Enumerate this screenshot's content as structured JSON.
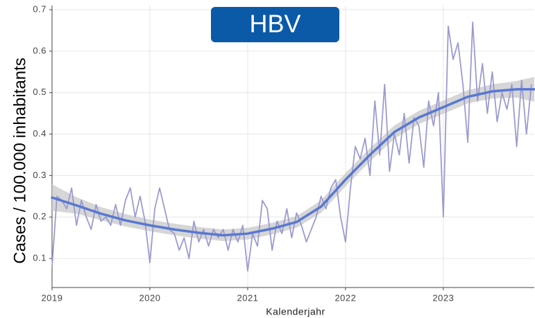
{
  "chart_data": {
    "type": "line",
    "title": "HBV",
    "ylabel": "Cases / 100.000 inhabitants",
    "xlabel": "Kalenderjahr",
    "xlim": [
      2019,
      2023.93
    ],
    "ylim": [
      0.03,
      0.71
    ],
    "xticks": [
      2019,
      2020,
      2021,
      2022,
      2023
    ],
    "yticks": [
      0.1,
      0.2,
      0.3,
      0.4,
      0.5,
      0.6,
      0.7
    ],
    "grid": true,
    "title_box_color": "#0b5aa8",
    "x": [
      2019,
      2019.05,
      2019.1,
      2019.15,
      2019.2,
      2019.25,
      2019.3,
      2019.35,
      2019.4,
      2019.45,
      2019.5,
      2019.55,
      2019.6,
      2019.65,
      2019.7,
      2019.75,
      2019.8,
      2019.85,
      2019.9,
      2019.95,
      2020,
      2020.05,
      2020.1,
      2020.15,
      2020.2,
      2020.25,
      2020.3,
      2020.35,
      2020.4,
      2020.45,
      2020.5,
      2020.55,
      2020.6,
      2020.65,
      2020.7,
      2020.75,
      2020.8,
      2020.85,
      2020.9,
      2020.95,
      2021,
      2021.05,
      2021.1,
      2021.15,
      2021.2,
      2021.25,
      2021.3,
      2021.35,
      2021.4,
      2021.45,
      2021.5,
      2021.55,
      2021.6,
      2021.65,
      2021.7,
      2021.75,
      2021.8,
      2021.85,
      2021.9,
      2021.95,
      2022,
      2022.05,
      2022.1,
      2022.15,
      2022.2,
      2022.25,
      2022.3,
      2022.35,
      2022.4,
      2022.45,
      2022.5,
      2022.55,
      2022.6,
      2022.65,
      2022.7,
      2022.75,
      2022.8,
      2022.85,
      2022.9,
      2022.95,
      2023,
      2023.05,
      2023.1,
      2023.15,
      2023.2,
      2023.25,
      2023.3,
      2023.35,
      2023.4,
      2023.45,
      2023.5,
      2023.55,
      2023.6,
      2023.65,
      2023.7,
      2023.75,
      2023.8,
      2023.85,
      2023.9
    ],
    "series": [
      {
        "color": "#9b9bd0",
        "values": [
          0.08,
          0.25,
          0.24,
          0.22,
          0.27,
          0.18,
          0.24,
          0.2,
          0.17,
          0.23,
          0.19,
          0.2,
          0.18,
          0.23,
          0.18,
          0.24,
          0.27,
          0.2,
          0.25,
          0.19,
          0.09,
          0.22,
          0.27,
          0.22,
          0.17,
          0.16,
          0.12,
          0.15,
          0.1,
          0.19,
          0.14,
          0.17,
          0.13,
          0.17,
          0.15,
          0.17,
          0.12,
          0.17,
          0.14,
          0.18,
          0.07,
          0.16,
          0.13,
          0.24,
          0.22,
          0.12,
          0.19,
          0.16,
          0.22,
          0.15,
          0.21,
          0.18,
          0.14,
          0.17,
          0.2,
          0.25,
          0.22,
          0.27,
          0.29,
          0.2,
          0.14,
          0.27,
          0.37,
          0.34,
          0.39,
          0.3,
          0.48,
          0.35,
          0.52,
          0.31,
          0.4,
          0.35,
          0.45,
          0.33,
          0.44,
          0.42,
          0.32,
          0.48,
          0.42,
          0.5,
          0.2,
          0.66,
          0.58,
          0.62,
          0.52,
          0.38,
          0.67,
          0.48,
          0.57,
          0.45,
          0.55,
          0.43,
          0.5,
          0.46,
          0.52,
          0.37,
          0.53,
          0.4,
          0.52
        ]
      }
    ],
    "trend": {
      "color": "#5878d0",
      "band_color": "#c8c8c8",
      "x": [
        2019,
        2019.25,
        2019.5,
        2019.75,
        2020,
        2020.25,
        2020.5,
        2020.75,
        2021,
        2021.25,
        2021.5,
        2021.75,
        2022,
        2022.25,
        2022.5,
        2022.75,
        2023,
        2023.25,
        2023.5,
        2023.75,
        2023.93
      ],
      "values": [
        0.247,
        0.228,
        0.208,
        0.192,
        0.18,
        0.17,
        0.162,
        0.156,
        0.16,
        0.172,
        0.188,
        0.225,
        0.29,
        0.35,
        0.405,
        0.44,
        0.465,
        0.49,
        0.503,
        0.508,
        0.508
      ],
      "lower": [
        0.215,
        0.208,
        0.192,
        0.177,
        0.166,
        0.156,
        0.148,
        0.142,
        0.146,
        0.158,
        0.174,
        0.21,
        0.274,
        0.334,
        0.389,
        0.424,
        0.449,
        0.474,
        0.486,
        0.488,
        0.478
      ],
      "upper": [
        0.279,
        0.248,
        0.224,
        0.207,
        0.194,
        0.184,
        0.176,
        0.17,
        0.174,
        0.186,
        0.202,
        0.24,
        0.306,
        0.366,
        0.421,
        0.456,
        0.481,
        0.506,
        0.52,
        0.528,
        0.538
      ]
    }
  }
}
